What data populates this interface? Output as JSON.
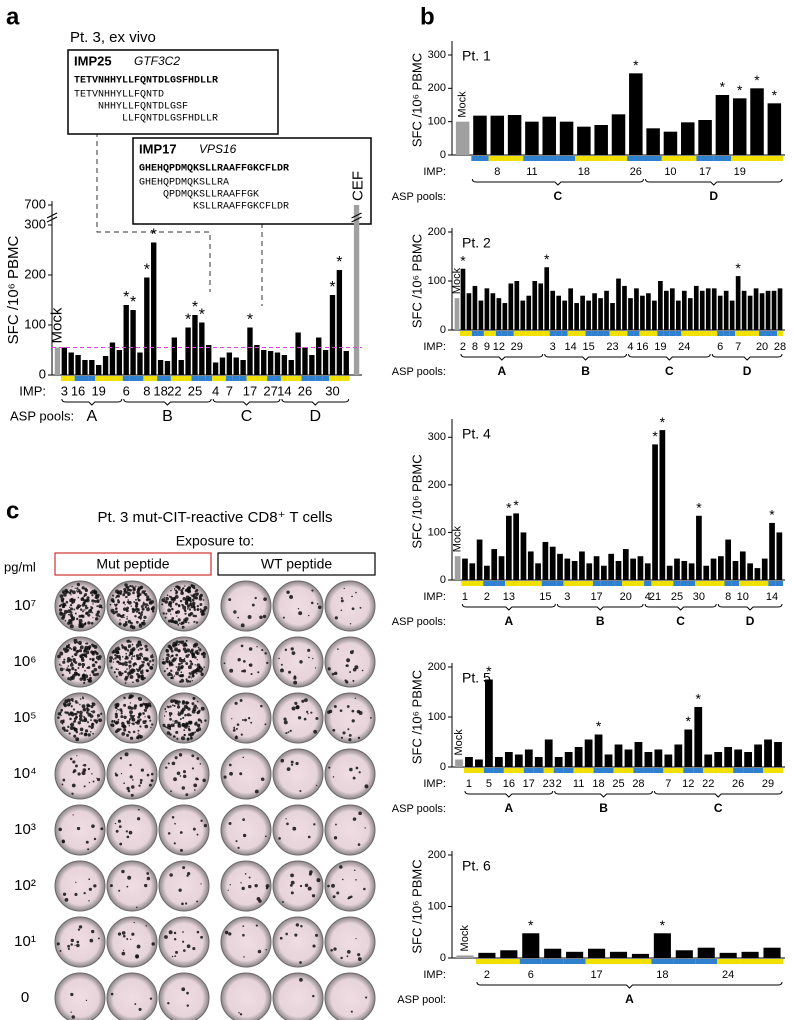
{
  "panel_labels": [
    "a",
    "b",
    "c"
  ],
  "peptides": [
    {
      "name": "IMP25",
      "gene": "GTF3C2",
      "sequence": "TETVNHHYLLFQNTDLGSFHDLLR",
      "lines": [
        {
          "text": "TETVNHHYLLFQNTD",
          "color": "#d03030"
        },
        {
          "text": "NHHYLLFQNTDLGSF",
          "color": "#d03030"
        },
        {
          "text": "LLFQNTDLGSFHDLLR",
          "color": "#d03030"
        }
      ]
    },
    {
      "name": "IMP17",
      "gene": "VPS16",
      "sequence": "GHEHQPDMQKSLLRAAFFGKCFLDR",
      "lines": [
        {
          "text": "GHEHQPDMQKSLLRA",
          "color": "#555555"
        },
        {
          "text": "QPDMQKSLLRAAFFGK",
          "color": "#555555"
        },
        {
          "text": "KSLLRAAFFGKCFLDR",
          "color": "#d03030"
        }
      ]
    }
  ],
  "spot_assay": {
    "title": "Pt. 3 mut-CIT-reactive CD8⁺ T cells",
    "exposure_label": "Exposure to:",
    "conditions": [
      {
        "label": "Mut peptide",
        "color": "#d03030"
      },
      {
        "label": "WT peptide",
        "color": "#000000"
      }
    ],
    "concentration_label": "pg/ml",
    "concentrations": [
      "10⁷",
      "10⁶",
      "10⁵",
      "10⁴",
      "10³",
      "10²",
      "10¹",
      "0"
    ]
  },
  "chart_data": [
    {
      "type": "bar",
      "title": "Pt. 3, ex vivo",
      "ylabel": "SFC /10⁶ PBMC",
      "xlabel": "IMP:",
      "group_label": "ASP pools:",
      "ylim": [
        0,
        700
      ],
      "yticks": [
        0,
        100,
        200,
        300,
        700
      ],
      "axis_break": true,
      "color": "#000000",
      "mock_color": "#a0a0a0",
      "strip_colors": [
        "#f0e000",
        "#3080d0"
      ],
      "mock_label": "Mock",
      "mock": 55,
      "cef_label": "CEF",
      "cef": 700,
      "threshold": 55,
      "threshold_color": "#e040e0",
      "groups": [
        {
          "name": "A",
          "categories": [
            "3",
            null,
            "16",
            null,
            null,
            "19",
            null,
            null,
            null
          ],
          "values": [
            55,
            45,
            40,
            30,
            30,
            20,
            38,
            65,
            50
          ],
          "markers": [
            null,
            null,
            null,
            null,
            null,
            null,
            null,
            null,
            null
          ]
        },
        {
          "name": "B",
          "categories": [
            "6",
            null,
            null,
            "8",
            null,
            "18",
            null,
            "22",
            null,
            null,
            "25",
            null,
            null
          ],
          "values": [
            140,
            130,
            45,
            195,
            265,
            30,
            28,
            75,
            30,
            95,
            120,
            105,
            60
          ],
          "markers": [
            "*",
            "*",
            null,
            "*",
            "*",
            null,
            null,
            null,
            null,
            "*",
            "*",
            "*",
            null
          ]
        },
        {
          "name": "C",
          "categories": [
            "4",
            null,
            "7",
            null,
            null,
            "17",
            null,
            null,
            "27",
            null
          ],
          "values": [
            25,
            35,
            45,
            35,
            30,
            95,
            60,
            50,
            48,
            45
          ],
          "markers": [
            null,
            null,
            null,
            null,
            null,
            "*",
            null,
            null,
            null,
            null
          ]
        },
        {
          "name": "D",
          "categories": [
            "14",
            null,
            null,
            "26",
            null,
            null,
            null,
            "30",
            null,
            null
          ],
          "values": [
            40,
            30,
            85,
            55,
            40,
            75,
            50,
            160,
            210,
            48
          ],
          "markers": [
            null,
            null,
            null,
            null,
            null,
            null,
            null,
            "*",
            "*",
            null
          ]
        }
      ]
    },
    {
      "type": "bar",
      "title": "Pt. 1",
      "ylabel": "SFC /10⁶ PBMC",
      "xlabel": "IMP:",
      "group_label": "ASP pools:",
      "ylim": [
        0,
        330
      ],
      "yticks": [
        0,
        100,
        200,
        300
      ],
      "color": "#000000",
      "mock_color": "#a0a0a0",
      "strip_colors": [
        "#f0e000",
        "#3080d0"
      ],
      "mock_label": "Mock",
      "mock": 100,
      "groups": [
        {
          "name": "C",
          "categories": [
            null,
            "8",
            null,
            "11",
            null,
            null,
            "18",
            null,
            null,
            "26"
          ],
          "values": [
            118,
            118,
            120,
            100,
            115,
            100,
            85,
            90,
            122,
            245
          ],
          "markers": [
            null,
            null,
            null,
            null,
            null,
            null,
            null,
            null,
            null,
            "*"
          ]
        },
        {
          "name": "D",
          "categories": [
            null,
            "10",
            null,
            "17",
            null,
            "19",
            null,
            null
          ],
          "values": [
            80,
            70,
            98,
            105,
            180,
            170,
            200,
            155
          ],
          "markers": [
            null,
            null,
            null,
            null,
            "*",
            "*",
            "*",
            "*"
          ]
        }
      ]
    },
    {
      "type": "bar",
      "title": "Pt. 2",
      "ylabel": "SFC /10⁶ PBMC",
      "xlabel": "IMP:",
      "group_label": "ASP pools:",
      "ylim": [
        0,
        200
      ],
      "yticks": [
        0,
        100,
        200
      ],
      "color": "#000000",
      "mock_color": "#a0a0a0",
      "strip_colors": [
        "#f0e000",
        "#3080d0"
      ],
      "mock_label": "Mock",
      "mock": 65,
      "groups": [
        {
          "name": "A",
          "categories": [
            "2",
            null,
            "8",
            null,
            "9",
            null,
            "12",
            null,
            null,
            "29",
            null,
            null,
            null,
            null
          ],
          "values": [
            125,
            75,
            90,
            60,
            85,
            75,
            65,
            55,
            95,
            100,
            60,
            70,
            100,
            95
          ],
          "markers": [
            "*",
            null,
            null,
            null,
            null,
            null,
            null,
            null,
            null,
            null,
            null,
            null,
            null,
            null
          ]
        },
        {
          "name": "B",
          "categories": [
            null,
            "3",
            null,
            null,
            "14",
            null,
            null,
            "15",
            null,
            null,
            null,
            "23",
            null,
            null
          ],
          "values": [
            128,
            80,
            70,
            60,
            85,
            55,
            70,
            60,
            75,
            65,
            80,
            55,
            105,
            90
          ],
          "markers": [
            "*",
            null,
            null,
            null,
            null,
            null,
            null,
            null,
            null,
            null,
            null,
            null,
            null,
            null
          ]
        },
        {
          "name": "C",
          "categories": [
            "4",
            null,
            "16",
            null,
            null,
            "19",
            null,
            null,
            null,
            "24",
            null,
            null,
            null,
            null
          ],
          "values": [
            65,
            85,
            70,
            75,
            60,
            100,
            80,
            85,
            60,
            80,
            65,
            90,
            80,
            85
          ],
          "markers": [
            null,
            null,
            null,
            null,
            null,
            null,
            null,
            null,
            null,
            null,
            null,
            null,
            null,
            null
          ]
        },
        {
          "name": "D",
          "categories": [
            null,
            "6",
            null,
            null,
            "7",
            null,
            null,
            null,
            "20",
            null,
            null,
            "28"
          ],
          "values": [
            85,
            70,
            80,
            60,
            110,
            80,
            70,
            85,
            75,
            80,
            80,
            85
          ],
          "markers": [
            null,
            null,
            null,
            null,
            "*",
            null,
            null,
            null,
            null,
            null,
            null,
            null
          ]
        }
      ]
    },
    {
      "type": "bar",
      "title": "Pt. 4",
      "ylabel": "SFC /10⁶ PBMC",
      "xlabel": "IMP:",
      "group_label": "ASP pools:",
      "ylim": [
        0,
        330
      ],
      "yticks": [
        0,
        100,
        200,
        300
      ],
      "color": "#000000",
      "mock_color": "#a0a0a0",
      "strip_colors": [
        "#f0e000",
        "#3080d0"
      ],
      "mock_label": "Mock",
      "mock": 50,
      "groups": [
        {
          "name": "A",
          "categories": [
            "1",
            null,
            null,
            "2",
            null,
            null,
            "13",
            null,
            null,
            null,
            null,
            "15",
            null
          ],
          "values": [
            45,
            35,
            85,
            30,
            65,
            50,
            135,
            140,
            100,
            60,
            35,
            80,
            70
          ],
          "markers": [
            null,
            null,
            null,
            null,
            null,
            null,
            "*",
            "*",
            null,
            null,
            null,
            null,
            null
          ]
        },
        {
          "name": "B",
          "categories": [
            null,
            "3",
            null,
            null,
            null,
            "17",
            null,
            null,
            null,
            "20",
            null,
            null
          ],
          "values": [
            55,
            45,
            40,
            60,
            35,
            50,
            30,
            55,
            40,
            65,
            45,
            50
          ],
          "markers": [
            null,
            null,
            null,
            null,
            null,
            null,
            null,
            null,
            null,
            null,
            null,
            null
          ]
        },
        {
          "name": "C",
          "categories": [
            "4",
            "21",
            null,
            null,
            "25",
            null,
            null,
            "30",
            null,
            null
          ],
          "values": [
            35,
            285,
            315,
            30,
            45,
            40,
            35,
            135,
            30,
            45
          ],
          "markers": [
            null,
            "*",
            "*",
            null,
            null,
            null,
            null,
            "*",
            null,
            null
          ]
        },
        {
          "name": "D",
          "categories": [
            null,
            "8",
            null,
            "10",
            null,
            null,
            null,
            "14",
            null
          ],
          "values": [
            50,
            85,
            40,
            60,
            35,
            25,
            45,
            120,
            100
          ],
          "markers": [
            null,
            null,
            null,
            null,
            null,
            null,
            null,
            "*",
            null
          ]
        }
      ]
    },
    {
      "type": "bar",
      "title": "Pt. 5",
      "ylabel": "SFC /10⁶ PBMC",
      "xlabel": "IMP:",
      "group_label": "ASP pools:",
      "ylim": [
        0,
        200
      ],
      "yticks": [
        0,
        100,
        200
      ],
      "color": "#000000",
      "mock_color": "#a0a0a0",
      "strip_colors": [
        "#f0e000",
        "#3080d0"
      ],
      "mock_label": "Mock",
      "mock": 15,
      "groups": [
        {
          "name": "A",
          "categories": [
            "1",
            null,
            "5",
            null,
            "16",
            null,
            "17",
            null,
            "23"
          ],
          "values": [
            20,
            15,
            175,
            20,
            30,
            25,
            35,
            20,
            55
          ],
          "markers": [
            null,
            null,
            "*",
            null,
            null,
            null,
            null,
            null,
            null
          ]
        },
        {
          "name": "B",
          "categories": [
            "2",
            null,
            "11",
            null,
            "18",
            null,
            "25",
            null,
            "28",
            null
          ],
          "values": [
            20,
            30,
            40,
            55,
            65,
            25,
            45,
            35,
            50,
            30
          ],
          "markers": [
            null,
            null,
            null,
            null,
            "*",
            null,
            null,
            null,
            null,
            null
          ]
        },
        {
          "name": "C",
          "categories": [
            null,
            "7",
            null,
            "12",
            null,
            "22",
            null,
            null,
            "26",
            null,
            null,
            "29",
            null
          ],
          "values": [
            35,
            25,
            45,
            75,
            120,
            25,
            30,
            40,
            35,
            30,
            45,
            55,
            50
          ],
          "markers": [
            null,
            null,
            null,
            "*",
            "*",
            null,
            null,
            null,
            null,
            null,
            null,
            null,
            null
          ]
        }
      ]
    },
    {
      "type": "bar",
      "title": "Pt. 6",
      "ylabel": "SFC /10⁶ PBMC",
      "xlabel": "IMP:",
      "group_label": "ASP pool:",
      "ylim": [
        0,
        200
      ],
      "yticks": [
        0,
        100,
        200
      ],
      "color": "#000000",
      "mock_color": "#a0a0a0",
      "strip_colors": [
        "#f0e000",
        "#3080d0"
      ],
      "mock_label": "Mock",
      "mock": 5,
      "groups": [
        {
          "name": "A",
          "categories": [
            "2",
            null,
            "6",
            null,
            null,
            "17",
            null,
            null,
            "18",
            null,
            null,
            "24",
            null,
            null
          ],
          "values": [
            10,
            15,
            48,
            18,
            12,
            18,
            12,
            8,
            48,
            15,
            20,
            10,
            12,
            20
          ],
          "markers": [
            null,
            null,
            "*",
            null,
            null,
            null,
            null,
            null,
            "*",
            null,
            null,
            null,
            null,
            null
          ]
        }
      ]
    }
  ]
}
